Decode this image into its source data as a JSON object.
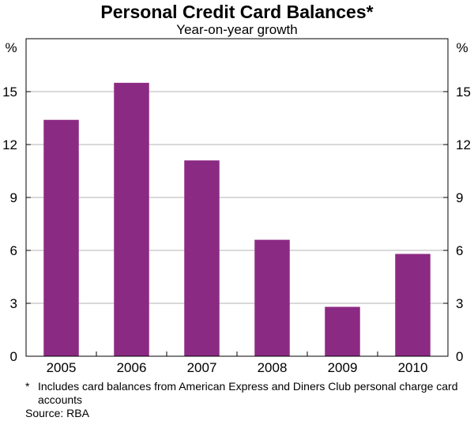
{
  "title": "Personal Credit Card Balances*",
  "subtitle": "Year-on-year growth",
  "footnote": {
    "mark": "*",
    "text": "Includes card balances from American Express and Diners Club personal charge card accounts"
  },
  "source": "Source: RBA",
  "chart_data": {
    "type": "bar",
    "title": "Personal Credit Card Balances*",
    "subtitle": "Year-on-year growth",
    "categories": [
      "2005",
      "2006",
      "2007",
      "2008",
      "2009",
      "2010"
    ],
    "values": [
      13.4,
      15.5,
      11.1,
      6.6,
      2.8,
      5.8
    ],
    "ylim": [
      0,
      18
    ],
    "yticks": [
      0,
      3,
      6,
      9,
      12,
      15
    ],
    "y_unit_label": "%",
    "secondary_y_axis": true,
    "grid": true,
    "bar_color": "#8B2A83"
  }
}
